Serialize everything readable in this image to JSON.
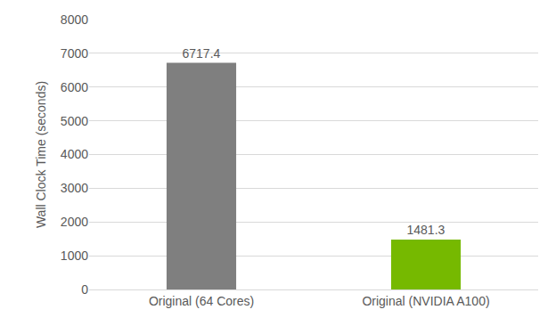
{
  "chart_data": {
    "type": "bar",
    "y_label": "Wall Clock Time (seconds)",
    "categories": [
      "Original (64 Cores)",
      "Original (NVIDIA A100)"
    ],
    "values": [
      6717.4,
      1481.3
    ],
    "colors": [
      "#7f7f7f",
      "#76b900"
    ],
    "ylim": [
      0,
      8000
    ],
    "yticks": [
      0,
      1000,
      2000,
      3000,
      4000,
      5000,
      6000,
      7000,
      8000
    ],
    "grid": true,
    "data_labels": true
  }
}
